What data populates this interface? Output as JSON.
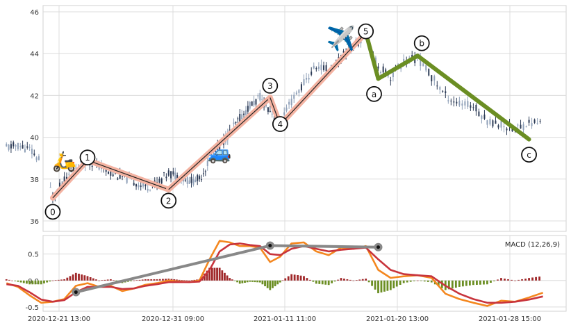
{
  "chart_data": {
    "type": "candlestick",
    "x_ticks": [
      "2020-12-21 13:00",
      "2020-12-31 09:00",
      "2021-01-11 11:00",
      "2021-01-20 13:00",
      "2021-01-28 15:00"
    ],
    "price_panel": {
      "ylim": [
        35.5,
        46.3
      ],
      "yticks": [
        36,
        38,
        40,
        42,
        44,
        46
      ],
      "grid": true,
      "series_close": [
        {
          "t": "2020-12-17",
          "v": 39.5
        },
        {
          "t": "2020-12-18",
          "v": 39.6
        },
        {
          "t": "2020-12-19",
          "v": 39.4
        },
        {
          "t": "2020-12-20",
          "v": 38.8
        },
        {
          "t": "2020-12-21",
          "v": 37.2
        },
        {
          "t": "2020-12-22",
          "v": 37.9
        },
        {
          "t": "2020-12-23",
          "v": 38.6
        },
        {
          "t": "2020-12-24",
          "v": 38.9
        },
        {
          "t": "2020-12-25",
          "v": 38.6
        },
        {
          "t": "2020-12-26",
          "v": 38.3
        },
        {
          "t": "2020-12-27",
          "v": 38.1
        },
        {
          "t": "2020-12-28",
          "v": 37.9
        },
        {
          "t": "2020-12-29",
          "v": 37.6
        },
        {
          "t": "2020-12-30",
          "v": 37.8
        },
        {
          "t": "2020-12-31",
          "v": 38.3
        },
        {
          "t": "2021-01-01",
          "v": 38.1
        },
        {
          "t": "2021-01-02",
          "v": 37.9
        },
        {
          "t": "2021-01-03",
          "v": 38.0
        },
        {
          "t": "2021-01-04",
          "v": 38.9
        },
        {
          "t": "2021-01-05",
          "v": 39.6
        },
        {
          "t": "2021-01-06",
          "v": 40.2
        },
        {
          "t": "2021-01-07",
          "v": 40.9
        },
        {
          "t": "2021-01-08",
          "v": 41.5
        },
        {
          "t": "2021-01-09",
          "v": 41.9
        },
        {
          "t": "2021-01-10",
          "v": 41.3
        },
        {
          "t": "2021-01-11",
          "v": 40.6
        },
        {
          "t": "2021-01-12",
          "v": 41.7
        },
        {
          "t": "2021-01-13",
          "v": 42.6
        },
        {
          "t": "2021-01-14",
          "v": 43.4
        },
        {
          "t": "2021-01-15",
          "v": 43.2
        },
        {
          "t": "2021-01-16",
          "v": 43.8
        },
        {
          "t": "2021-01-17",
          "v": 44.4
        },
        {
          "t": "2021-01-18",
          "v": 44.9
        },
        {
          "t": "2021-01-19",
          "v": 43.4
        },
        {
          "t": "2021-01-20",
          "v": 42.9
        },
        {
          "t": "2021-01-21",
          "v": 43.6
        },
        {
          "t": "2021-01-22",
          "v": 43.8
        },
        {
          "t": "2021-01-23",
          "v": 42.9
        },
        {
          "t": "2021-01-24",
          "v": 42.0
        },
        {
          "t": "2021-01-25",
          "v": 41.6
        },
        {
          "t": "2021-01-26",
          "v": 41.5
        },
        {
          "t": "2021-01-27",
          "v": 40.8
        },
        {
          "t": "2021-01-28",
          "v": 40.6
        },
        {
          "t": "2021-01-29",
          "v": 40.4
        },
        {
          "t": "2021-01-30",
          "v": 40.7
        },
        {
          "t": "2021-01-31",
          "v": 40.7
        }
      ]
    },
    "wave_points": [
      {
        "label": "0",
        "t": "2020-12-21",
        "v": 37.1
      },
      {
        "label": "1",
        "t": "2020-12-24",
        "v": 38.9
      },
      {
        "label": "2",
        "t": "2020-12-31",
        "v": 37.5
      },
      {
        "label": "3",
        "t": "2021-01-10",
        "v": 41.9
      },
      {
        "label": "4",
        "t": "2021-01-11",
        "v": 40.6
      },
      {
        "label": "5",
        "t": "2021-01-18",
        "v": 45.0
      },
      {
        "label": "a",
        "t": "2021-01-19",
        "v": 42.8
      },
      {
        "label": "b",
        "t": "2021-01-22",
        "v": 43.9
      },
      {
        "label": "c",
        "t": "2021-01-30",
        "v": 39.9
      }
    ],
    "impulse_color": "#f4b3a2",
    "correction_color": "#6b8e23",
    "emoji_markers": [
      {
        "glyph": "🛵",
        "t": "2020-12-22",
        "v": 38.9
      },
      {
        "glyph": "🚙",
        "t": "2021-01-05",
        "v": 39.3
      },
      {
        "glyph": "✈️",
        "t": "2021-01-16",
        "v": 44.7
      }
    ],
    "macd_panel": {
      "label": "MACD (12,26,9)",
      "ylim": [
        -0.58,
        0.85
      ],
      "yticks": [
        -0.5,
        0.0,
        0.5
      ],
      "macd_color": "#f4871f",
      "signal_color": "#c8343c",
      "hist_pos_color": "#a0282a",
      "hist_neg_color": "#6b8e23",
      "trend_line_color": "#888888",
      "macd": [
        {
          "t": "2020-12-17",
          "v": -0.05
        },
        {
          "t": "2020-12-18",
          "v": -0.12
        },
        {
          "t": "2020-12-19",
          "v": -0.28
        },
        {
          "t": "2020-12-20",
          "v": -0.42
        },
        {
          "t": "2020-12-21",
          "v": -0.4
        },
        {
          "t": "2020-12-22",
          "v": -0.35
        },
        {
          "t": "2020-12-23",
          "v": -0.1
        },
        {
          "t": "2020-12-24",
          "v": -0.05
        },
        {
          "t": "2020-12-25",
          "v": -0.12
        },
        {
          "t": "2020-12-26",
          "v": -0.1
        },
        {
          "t": "2020-12-27",
          "v": -0.2
        },
        {
          "t": "2020-12-28",
          "v": -0.15
        },
        {
          "t": "2020-12-29",
          "v": -0.08
        },
        {
          "t": "2020-12-30",
          "v": -0.05
        },
        {
          "t": "2020-12-31",
          "v": 0.0
        },
        {
          "t": "2021-01-01",
          "v": -0.02
        },
        {
          "t": "2021-01-02",
          "v": -0.03
        },
        {
          "t": "2021-01-03",
          "v": 0.0
        },
        {
          "t": "2021-01-04",
          "v": 0.4
        },
        {
          "t": "2021-01-05",
          "v": 0.75
        },
        {
          "t": "2021-01-06",
          "v": 0.72
        },
        {
          "t": "2021-01-07",
          "v": 0.65
        },
        {
          "t": "2021-01-08",
          "v": 0.65
        },
        {
          "t": "2021-01-09",
          "v": 0.62
        },
        {
          "t": "2021-01-10",
          "v": 0.35
        },
        {
          "t": "2021-01-11",
          "v": 0.45
        },
        {
          "t": "2021-01-12",
          "v": 0.7
        },
        {
          "t": "2021-01-13",
          "v": 0.72
        },
        {
          "t": "2021-01-14",
          "v": 0.55
        },
        {
          "t": "2021-01-15",
          "v": 0.48
        },
        {
          "t": "2021-01-16",
          "v": 0.62
        },
        {
          "t": "2021-01-17",
          "v": 0.6
        },
        {
          "t": "2021-01-18",
          "v": 0.65
        },
        {
          "t": "2021-01-19",
          "v": 0.2
        },
        {
          "t": "2021-01-20",
          "v": 0.05
        },
        {
          "t": "2021-01-21",
          "v": 0.08
        },
        {
          "t": "2021-01-22",
          "v": 0.1
        },
        {
          "t": "2021-01-23",
          "v": 0.05
        },
        {
          "t": "2021-01-24",
          "v": -0.25
        },
        {
          "t": "2021-01-25",
          "v": -0.35
        },
        {
          "t": "2021-01-26",
          "v": -0.42
        },
        {
          "t": "2021-01-27",
          "v": -0.48
        },
        {
          "t": "2021-01-28",
          "v": -0.38
        },
        {
          "t": "2021-01-29",
          "v": -0.4
        },
        {
          "t": "2021-01-30",
          "v": -0.32
        },
        {
          "t": "2021-01-31",
          "v": -0.23
        }
      ],
      "signal": [
        {
          "t": "2020-12-17",
          "v": -0.07
        },
        {
          "t": "2020-12-18",
          "v": -0.1
        },
        {
          "t": "2020-12-19",
          "v": -0.22
        },
        {
          "t": "2020-12-20",
          "v": -0.36
        },
        {
          "t": "2020-12-21",
          "v": -0.4
        },
        {
          "t": "2020-12-22",
          "v": -0.37
        },
        {
          "t": "2020-12-23",
          "v": -0.22
        },
        {
          "t": "2020-12-24",
          "v": -0.12
        },
        {
          "t": "2020-12-25",
          "v": -0.12
        },
        {
          "t": "2020-12-26",
          "v": -0.12
        },
        {
          "t": "2020-12-27",
          "v": -0.16
        },
        {
          "t": "2020-12-28",
          "v": -0.15
        },
        {
          "t": "2020-12-29",
          "v": -0.1
        },
        {
          "t": "2020-12-30",
          "v": -0.07
        },
        {
          "t": "2020-12-31",
          "v": -0.03
        },
        {
          "t": "2021-01-01",
          "v": -0.03
        },
        {
          "t": "2021-01-02",
          "v": -0.03
        },
        {
          "t": "2021-01-03",
          "v": -0.02
        },
        {
          "t": "2021-01-04",
          "v": 0.2
        },
        {
          "t": "2021-01-05",
          "v": 0.55
        },
        {
          "t": "2021-01-06",
          "v": 0.68
        },
        {
          "t": "2021-01-07",
          "v": 0.7
        },
        {
          "t": "2021-01-08",
          "v": 0.67
        },
        {
          "t": "2021-01-09",
          "v": 0.65
        },
        {
          "t": "2021-01-10",
          "v": 0.5
        },
        {
          "t": "2021-01-11",
          "v": 0.48
        },
        {
          "t": "2021-01-12",
          "v": 0.6
        },
        {
          "t": "2021-01-13",
          "v": 0.65
        },
        {
          "t": "2021-01-14",
          "v": 0.6
        },
        {
          "t": "2021-01-15",
          "v": 0.55
        },
        {
          "t": "2021-01-16",
          "v": 0.58
        },
        {
          "t": "2021-01-17",
          "v": 0.6
        },
        {
          "t": "2021-01-18",
          "v": 0.62
        },
        {
          "t": "2021-01-19",
          "v": 0.4
        },
        {
          "t": "2021-01-20",
          "v": 0.2
        },
        {
          "t": "2021-01-21",
          "v": 0.12
        },
        {
          "t": "2021-01-22",
          "v": 0.1
        },
        {
          "t": "2021-01-23",
          "v": 0.08
        },
        {
          "t": "2021-01-24",
          "v": -0.1
        },
        {
          "t": "2021-01-25",
          "v": -0.25
        },
        {
          "t": "2021-01-26",
          "v": -0.35
        },
        {
          "t": "2021-01-27",
          "v": -0.42
        },
        {
          "t": "2021-01-28",
          "v": -0.42
        },
        {
          "t": "2021-01-29",
          "v": -0.4
        },
        {
          "t": "2021-01-30",
          "v": -0.36
        },
        {
          "t": "2021-01-31",
          "v": -0.3
        }
      ],
      "trend_points": [
        {
          "t": "2020-12-23",
          "v": -0.22
        },
        {
          "t": "2021-01-10",
          "v": 0.66
        },
        {
          "t": "2021-01-19",
          "v": 0.63
        }
      ]
    }
  }
}
